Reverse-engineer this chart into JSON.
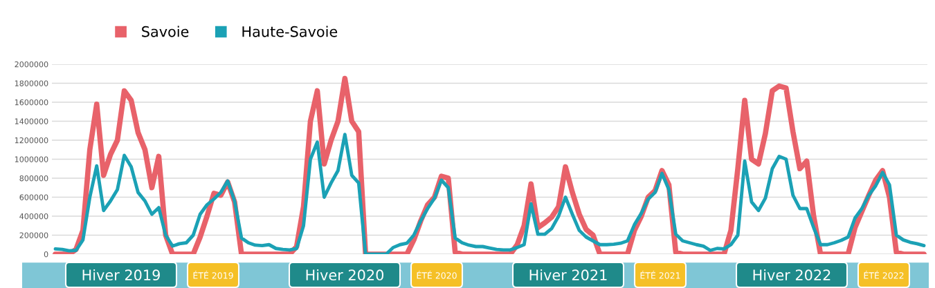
{
  "chart_data": {
    "type": "line",
    "categories": [
      null,
      null,
      null,
      null,
      null,
      null,
      null,
      null,
      null,
      null,
      null,
      null,
      null,
      null,
      null,
      null,
      null,
      null,
      null,
      null,
      null,
      null,
      null,
      null,
      null,
      null,
      null,
      null,
      null,
      null,
      null,
      null,
      null,
      null,
      null,
      null,
      null,
      null,
      null,
      null,
      null,
      null,
      null,
      null,
      null,
      null,
      null,
      null,
      null,
      null,
      null,
      null,
      null,
      null,
      null,
      null,
      null,
      null,
      null,
      null,
      null,
      null,
      null,
      null,
      null,
      null,
      null,
      null,
      null,
      null,
      null,
      null,
      null,
      null,
      null,
      null,
      null,
      null,
      null,
      null,
      null,
      null,
      null,
      null,
      null,
      null,
      null,
      null,
      null,
      null,
      null,
      null,
      null,
      null,
      null,
      null,
      null,
      null,
      null,
      null,
      null,
      null,
      null,
      null,
      null,
      null,
      null,
      null,
      null,
      null,
      null,
      null,
      null,
      null,
      null,
      null,
      null,
      null,
      null,
      null,
      null,
      null,
      null,
      null,
      null,
      null,
      null
    ],
    "series": [
      {
        "name": "Savoie",
        "color": "#e8626a",
        "values": [
          0,
          0,
          0,
          50000,
          250000,
          1100000,
          1580000,
          830000,
          1050000,
          1200000,
          1720000,
          1620000,
          1280000,
          1100000,
          700000,
          1030000,
          200000,
          0,
          0,
          0,
          0,
          180000,
          400000,
          640000,
          620000,
          760000,
          550000,
          0,
          0,
          0,
          0,
          0,
          0,
          0,
          0,
          80000,
          500000,
          1400000,
          1720000,
          950000,
          1200000,
          1400000,
          1850000,
          1400000,
          1290000,
          0,
          0,
          0,
          0,
          0,
          0,
          0,
          150000,
          350000,
          520000,
          600000,
          820000,
          800000,
          20000,
          0,
          0,
          0,
          0,
          0,
          0,
          0,
          0,
          100000,
          300000,
          740000,
          280000,
          330000,
          390000,
          500000,
          920000,
          650000,
          420000,
          260000,
          200000,
          0,
          0,
          0,
          0,
          0,
          250000,
          400000,
          600000,
          670000,
          880000,
          730000,
          20000,
          0,
          0,
          0,
          0,
          0,
          0,
          0,
          250000,
          900000,
          1620000,
          1000000,
          950000,
          1270000,
          1720000,
          1770000,
          1750000,
          1290000,
          900000,
          980000,
          400000,
          0,
          0,
          0,
          0,
          0,
          280000,
          450000,
          620000,
          780000,
          880000,
          600000,
          20000,
          0,
          0,
          0,
          0
        ]
      },
      {
        "name": "Haute-Savoie",
        "color": "#1ba1b5",
        "values": [
          55000,
          50000,
          35000,
          40000,
          150000,
          600000,
          930000,
          460000,
          560000,
          680000,
          1040000,
          920000,
          650000,
          560000,
          420000,
          490000,
          200000,
          85000,
          110000,
          120000,
          200000,
          420000,
          520000,
          580000,
          650000,
          770000,
          560000,
          170000,
          120000,
          95000,
          90000,
          100000,
          60000,
          50000,
          45000,
          60000,
          300000,
          1000000,
          1180000,
          600000,
          750000,
          880000,
          1260000,
          830000,
          750000,
          0,
          0,
          0,
          0,
          70000,
          100000,
          115000,
          200000,
          350000,
          480000,
          590000,
          780000,
          700000,
          170000,
          120000,
          95000,
          80000,
          80000,
          65000,
          50000,
          45000,
          45000,
          70000,
          100000,
          530000,
          210000,
          210000,
          270000,
          400000,
          600000,
          420000,
          250000,
          180000,
          140000,
          100000,
          100000,
          105000,
          115000,
          140000,
          310000,
          430000,
          580000,
          650000,
          850000,
          680000,
          210000,
          140000,
          120000,
          100000,
          85000,
          40000,
          60000,
          55000,
          100000,
          200000,
          980000,
          550000,
          460000,
          590000,
          900000,
          1030000,
          1000000,
          620000,
          480000,
          480000,
          280000,
          100000,
          100000,
          120000,
          145000,
          180000,
          380000,
          480000,
          620000,
          720000,
          860000,
          730000,
          200000,
          150000,
          125000,
          110000,
          90000
        ]
      }
    ],
    "ylim": [
      0,
      2000000
    ],
    "yticks": [
      0,
      200000,
      400000,
      600000,
      800000,
      1000000,
      1200000,
      1400000,
      1600000,
      1800000,
      2000000
    ],
    "grid": "y",
    "legend": "top left",
    "marker": "none",
    "line_style": "solid",
    "tick_labels": "y",
    "annotations": [
      "Hiver 2019",
      "ÉTÉ 2019",
      "Hiver 2020",
      "ÉTÉ 2020",
      "Hiver 2021",
      "ÉTÉ 2021",
      "Hiver 2022",
      "ÉTÉ 2022"
    ]
  }
}
